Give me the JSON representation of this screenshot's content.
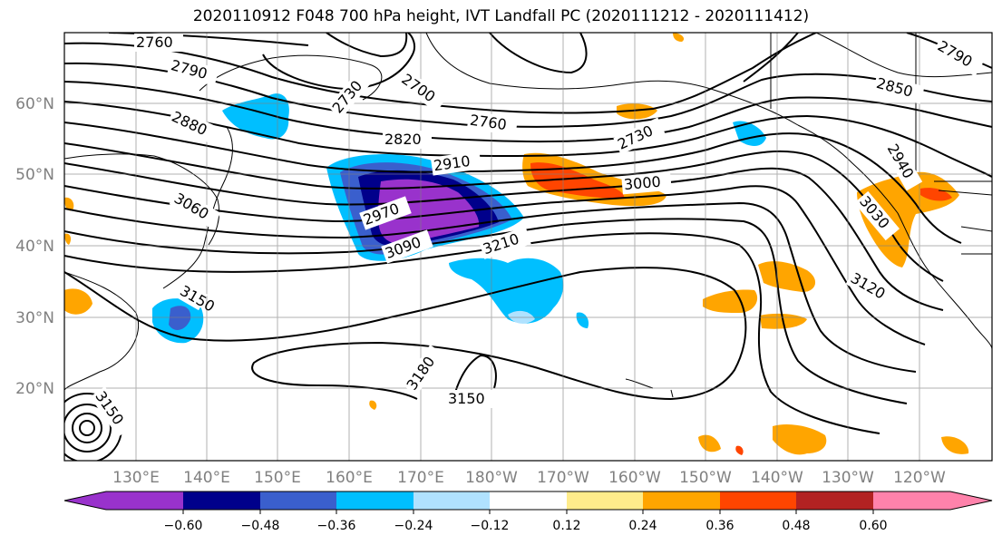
{
  "title": "2020110912 F048 700 hPa height, IVT Landfall PC (2020111212 - 2020111412)",
  "axes": {
    "lon_labels": [
      "130°E",
      "140°E",
      "150°E",
      "160°E",
      "170°E",
      "180°W",
      "170°W",
      "160°W",
      "150°W",
      "140°W",
      "130°W",
      "120°W"
    ],
    "lat_labels": [
      "60°N",
      "50°N",
      "40°N",
      "30°N",
      "20°N"
    ]
  },
  "contour_labels": [
    "2760",
    "2790",
    "2730",
    "2700",
    "2880",
    "2820",
    "2760",
    "2730",
    "2910",
    "2850",
    "2790",
    "2970",
    "3000",
    "2940",
    "3060",
    "3090",
    "3210",
    "3030",
    "3150",
    "3120",
    "3180",
    "3150",
    "3150"
  ],
  "colorbar": {
    "colors": [
      "#9932cc",
      "#00008b",
      "#3a5fcd",
      "#00bfff",
      "#b0e2ff",
      "#ffffff",
      "#ffec8b",
      "#ffa500",
      "#ff4500",
      "#b22222",
      "#ff82ab"
    ],
    "ticks": [
      "−0.60",
      "−0.48",
      "−0.36",
      "−0.24",
      "−0.12",
      "0.12",
      "0.24",
      "0.36",
      "0.48",
      "0.60"
    ]
  },
  "fill_colors": {
    "neg1": "#9932cc",
    "neg2": "#00008b",
    "neg3": "#3a5fcd",
    "neg4": "#00bfff",
    "neg5": "#b0e2ff",
    "pos1": "#ffec8b",
    "pos2": "#ffa500",
    "pos3": "#ff4500",
    "pos4": "#b22222"
  }
}
